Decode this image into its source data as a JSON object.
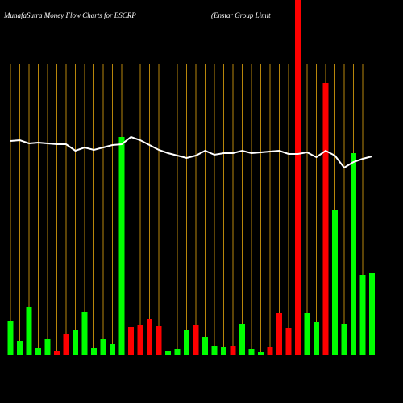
{
  "chart_data": {
    "type": "bar",
    "title": "MunafaSutra  Money Flow  Charts for ESCRP",
    "subtitle": "(Enstar Group Limit",
    "categories": [
      null,
      null,
      null,
      null,
      null,
      null,
      null,
      null,
      null,
      null,
      null,
      null,
      null,
      null,
      null,
      null,
      null,
      null,
      null,
      null,
      null,
      null,
      null,
      null,
      null,
      null,
      null,
      null,
      null,
      null,
      null,
      null,
      null,
      null,
      null,
      null,
      null,
      null,
      null,
      null
    ],
    "values": [
      42,
      17,
      59,
      8,
      20,
      5,
      26,
      31,
      53,
      8,
      19,
      13,
      270,
      34,
      37,
      44,
      36,
      5,
      7,
      30,
      37,
      22,
      11,
      9,
      11,
      38,
      7,
      3,
      10,
      52,
      33,
      440,
      52,
      41,
      337,
      180,
      38,
      250,
      99,
      101
    ],
    "colors": [
      "#00ff00",
      "#00ff00",
      "#00ff00",
      "#00ff00",
      "#00ff00",
      "#ff0000",
      "#ff0000",
      "#00ff00",
      "#00ff00",
      "#00ff00",
      "#00ff00",
      "#00ff00",
      "#00ff00",
      "#ff0000",
      "#ff0000",
      "#ff0000",
      "#ff0000",
      "#00ff00",
      "#00ff00",
      "#00ff00",
      "#ff0000",
      "#00ff00",
      "#00ff00",
      "#00ff00",
      "#ff0000",
      "#00ff00",
      "#00ff00",
      "#00ff00",
      "#ff0000",
      "#ff0000",
      "#ff0000",
      "#ff0000",
      "#00ff00",
      "#00ff00",
      "#ff0000",
      "#00ff00",
      "#00ff00",
      "#00ff00",
      "#00ff00",
      "#00ff00"
    ],
    "line": {
      "color": "#ffffff",
      "values": [
        265,
        266,
        262,
        263,
        262,
        261,
        261,
        253,
        257,
        254,
        257,
        260,
        261,
        270,
        266,
        260,
        254,
        250,
        247,
        244,
        247,
        253,
        248,
        250,
        250,
        253,
        250,
        251,
        252,
        253,
        249,
        249,
        251,
        245,
        253,
        247,
        232,
        239,
        243,
        246
      ]
    },
    "ylim": [
      0,
      440
    ],
    "grid": true,
    "grid_color": "#b8860b"
  }
}
